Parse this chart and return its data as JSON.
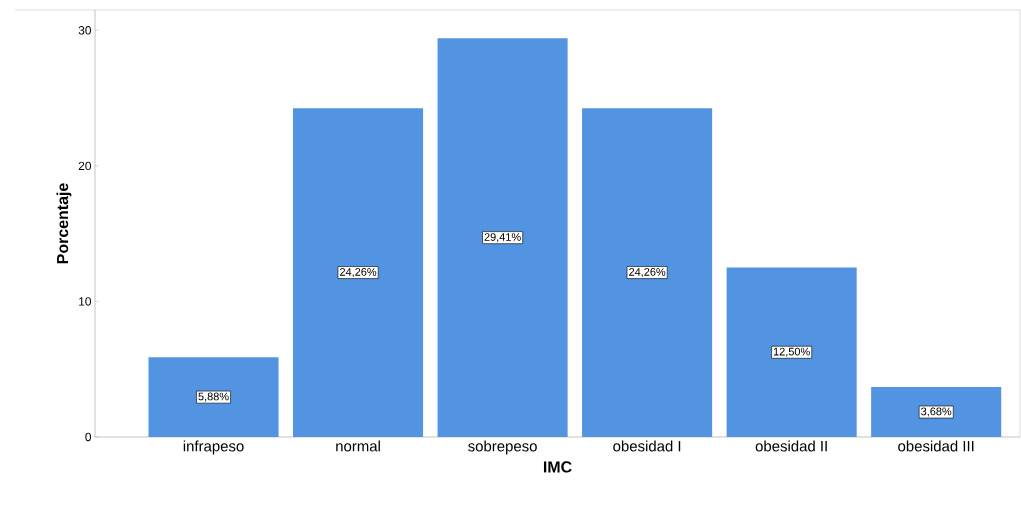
{
  "chart_data": {
    "type": "bar",
    "xlabel": "IMC",
    "ylabel": "Porcentaje",
    "categories": [
      "infrapeso",
      "normal",
      "sobrepeso",
      "obesidad I",
      "obesidad II",
      "obesidad III"
    ],
    "values": [
      5.88,
      24.26,
      29.41,
      24.26,
      12.5,
      3.68
    ],
    "value_labels": [
      "5,88%",
      "24,26%",
      "29,41%",
      "24,26%",
      "12,50%",
      "3,68%"
    ],
    "color": "#5294e2",
    "ylim": [
      0,
      31.5
    ],
    "yticks": [
      0,
      10,
      20,
      30
    ],
    "grid": false
  }
}
